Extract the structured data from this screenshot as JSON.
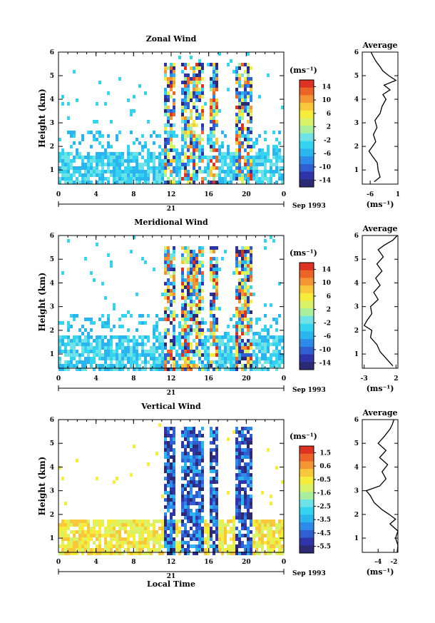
{
  "chart_data": [
    {
      "type": "heatmap",
      "title": "Zonal Wind",
      "ylabel": "Height (km)",
      "xlabel": "",
      "x_ticks": [
        "0",
        "4",
        "8",
        "12",
        "16",
        "20",
        "0"
      ],
      "y_ticks": [
        "1",
        "2",
        "3",
        "4",
        "5",
        "6"
      ],
      "xlim": [
        0,
        24
      ],
      "ylim": [
        0.4,
        6
      ],
      "date_label": "21",
      "month_label": "Sep 1993",
      "colorbar": {
        "unit": "(ms⁻¹)",
        "labels": [
          "14",
          "10",
          "6",
          "2",
          "-2",
          "-6",
          "-10",
          "-14"
        ],
        "range": [
          -16,
          16
        ]
      },
      "average": {
        "title": "Average",
        "xlabel": "(ms⁻¹)",
        "x_ticks": [
          "-6",
          "1"
        ],
        "xlim": [
          -8,
          1
        ],
        "y_ticks": [
          "1",
          "2",
          "3",
          "4",
          "5",
          "6"
        ],
        "heights": [
          0.5,
          0.7,
          1.0,
          1.3,
          1.6,
          1.8,
          2.0,
          2.2,
          2.5,
          2.8,
          3.1,
          3.4,
          3.7,
          4.0,
          4.2,
          4.4,
          4.6,
          4.8,
          5.0,
          5.2,
          5.4,
          5.6,
          5.8,
          6.0
        ],
        "values": [
          -5.0,
          -3.5,
          -4.0,
          -4.2,
          -5.5,
          -6.3,
          -5.4,
          -4.6,
          -5.2,
          -4.3,
          -4.8,
          -3.5,
          -3.0,
          -2.0,
          -2.8,
          -1.0,
          -2.5,
          0.5,
          -1.3,
          -2.8,
          -3.6,
          -4.5,
          -5.2,
          -5.8
        ]
      }
    },
    {
      "type": "heatmap",
      "title": "Meridional Wind",
      "ylabel": "Height (km)",
      "xlabel": "",
      "x_ticks": [
        "0",
        "4",
        "8",
        "12",
        "16",
        "20",
        "0"
      ],
      "y_ticks": [
        "1",
        "2",
        "3",
        "4",
        "5",
        "6"
      ],
      "xlim": [
        0,
        24
      ],
      "ylim": [
        0.4,
        6
      ],
      "date_label": "21",
      "month_label": "Sep 1993",
      "colorbar": {
        "unit": "(ms⁻¹)",
        "labels": [
          "14",
          "10",
          "6",
          "2",
          "-2",
          "-6",
          "-10",
          "-14"
        ],
        "range": [
          -16,
          16
        ]
      },
      "average": {
        "title": "Average",
        "xlabel": "(ms⁻¹)",
        "x_ticks": [
          "-3",
          "2"
        ],
        "xlim": [
          -3.3,
          2.3
        ],
        "y_ticks": [
          "1",
          "2",
          "3",
          "4",
          "5",
          "6"
        ],
        "heights": [
          0.5,
          0.8,
          1.1,
          1.4,
          1.7,
          2.0,
          2.2,
          2.4,
          2.7,
          3.0,
          3.3,
          3.6,
          3.9,
          4.2,
          4.5,
          4.8,
          5.1,
          5.4,
          5.6,
          5.8,
          6.0
        ],
        "values": [
          1.5,
          0.5,
          -0.5,
          -1.0,
          -2.0,
          -1.8,
          -3.0,
          -2.6,
          -1.8,
          -2.0,
          -0.8,
          -1.5,
          -0.5,
          -1.2,
          -0.2,
          -1.0,
          0.0,
          -0.8,
          0.2,
          1.5,
          2.2
        ]
      }
    },
    {
      "type": "heatmap",
      "title": "Vertical Wind",
      "ylabel": "Height (km)",
      "xlabel": "Local Time",
      "x_ticks": [
        "0",
        "4",
        "8",
        "12",
        "16",
        "20",
        "0"
      ],
      "y_ticks": [
        "1",
        "2",
        "3",
        "4",
        "5",
        "6"
      ],
      "xlim": [
        0,
        24
      ],
      "ylim": [
        0.4,
        6
      ],
      "date_label": "21",
      "month_label": "Sep 1993",
      "colorbar": {
        "unit": "(ms⁻¹)",
        "labels": [
          "1.5",
          "0.6",
          "-0.5",
          "-1.6",
          "-2.5",
          "-3.5",
          "-4.5",
          "-5.5"
        ],
        "range": [
          -6,
          2
        ]
      },
      "average": {
        "title": "Average",
        "xlabel": "(ms⁻¹)",
        "x_ticks": [
          "-4",
          "-2"
        ],
        "xlim": [
          -6,
          -1.5
        ],
        "y_ticks": [
          "1",
          "2",
          "3",
          "4",
          "5",
          "6"
        ],
        "heights": [
          0.4,
          0.7,
          1.0,
          1.3,
          1.6,
          1.8,
          2.0,
          2.2,
          2.5,
          2.8,
          3.0,
          3.2,
          3.5,
          3.8,
          4.1,
          4.4,
          4.7,
          5.0,
          5.3,
          5.6,
          5.8,
          6.0
        ],
        "values": [
          -1.6,
          -1.5,
          -1.8,
          -1.5,
          -2.5,
          -1.8,
          -2.6,
          -3.5,
          -4.5,
          -5.0,
          -5.5,
          -3.8,
          -3.0,
          -3.5,
          -2.8,
          -3.8,
          -3.0,
          -4.0,
          -3.2,
          -2.5,
          -2.2,
          -2.0
        ]
      }
    }
  ]
}
